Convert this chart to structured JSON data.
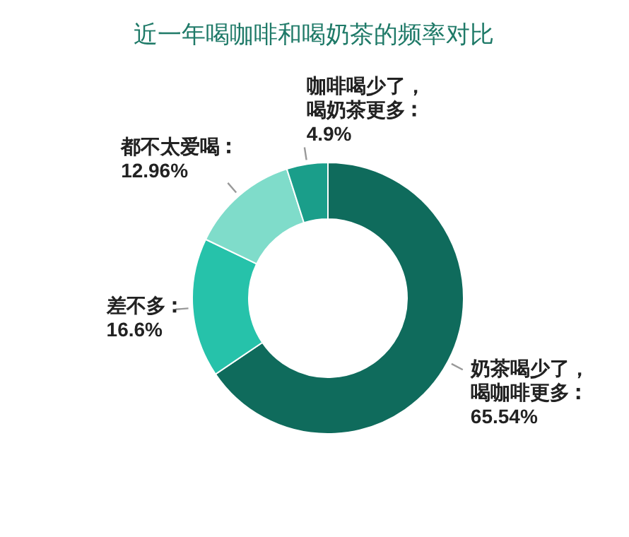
{
  "chart_data": {
    "type": "donut",
    "title": "近一年喝咖啡和喝奶茶的频率对比",
    "categories": [
      "奶茶喝少了，喝咖啡更多",
      "差不多",
      "都不太爱喝",
      "咖啡喝少了，喝奶茶更多"
    ],
    "values": [
      65.54,
      16.6,
      12.96,
      4.9
    ],
    "colors": [
      "#0f6b5c",
      "#26c2aa",
      "#7fdcca",
      "#1a9e8a"
    ],
    "value_labels": [
      "65.54%",
      "16.6%",
      "12.96%",
      "4.9%"
    ]
  }
}
